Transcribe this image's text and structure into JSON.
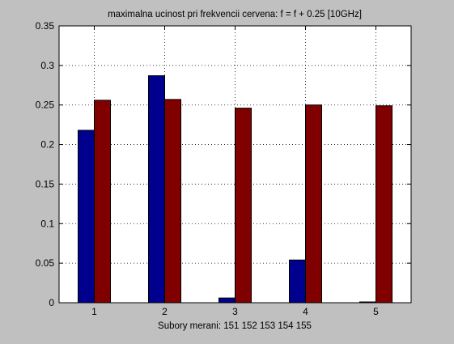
{
  "chart_data": {
    "type": "bar",
    "title": "maximalna ucinost pri frekvencii cervena: f = f + 0.25 [10GHz]",
    "xlabel": "Subory merani: 151 152 153 154 155",
    "ylabel": "",
    "categories": [
      "1",
      "2",
      "3",
      "4",
      "5"
    ],
    "ylim": [
      0,
      0.35
    ],
    "yticks": [
      0,
      0.05,
      0.1,
      0.15,
      0.2,
      0.25,
      0.3,
      0.35
    ],
    "ytick_labels": [
      "0",
      "0.05",
      "0.1",
      "0.15",
      "0.2",
      "0.25",
      "0.3",
      "0.35"
    ],
    "grid": true,
    "legend": "none",
    "series": [
      {
        "color": "#00008f",
        "values": [
          0.218,
          0.287,
          0.006,
          0.054,
          0.001
        ]
      },
      {
        "color": "#800000",
        "values": [
          0.256,
          0.257,
          0.246,
          0.25,
          0.249
        ]
      }
    ]
  }
}
